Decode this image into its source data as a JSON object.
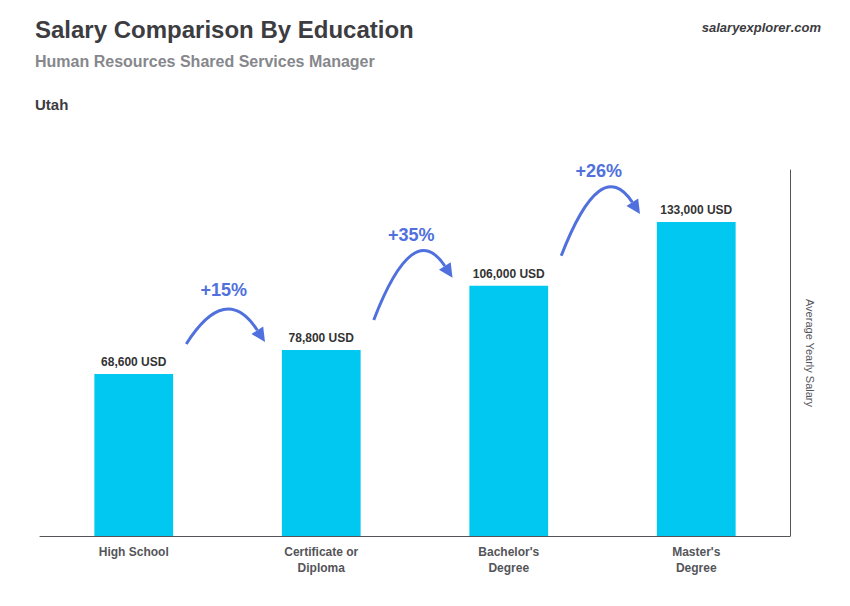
{
  "chart_data": {
    "type": "bar",
    "title": "Salary Comparison By Education",
    "subtitle": "Human Resources Shared Services Manager",
    "location": "Utah",
    "ylabel": "Average Yearly Salary",
    "watermark": [
      "salary",
      "explorer",
      ".com"
    ],
    "categories": [
      "High School",
      "Certificate or\nDiploma",
      "Bachelor's\nDegree",
      "Master's\nDegree"
    ],
    "values": [
      68600,
      78800,
      106000,
      133000
    ],
    "value_labels": [
      "68,600 USD",
      "78,800 USD",
      "106,000 USD",
      "133,000 USD"
    ],
    "data_labels": true,
    "annotations": [
      "+15%",
      "+35%",
      "+26%"
    ],
    "color": "#00c8f0",
    "ylim": [
      0,
      155000
    ],
    "grid": false,
    "tick_labels": "x"
  }
}
